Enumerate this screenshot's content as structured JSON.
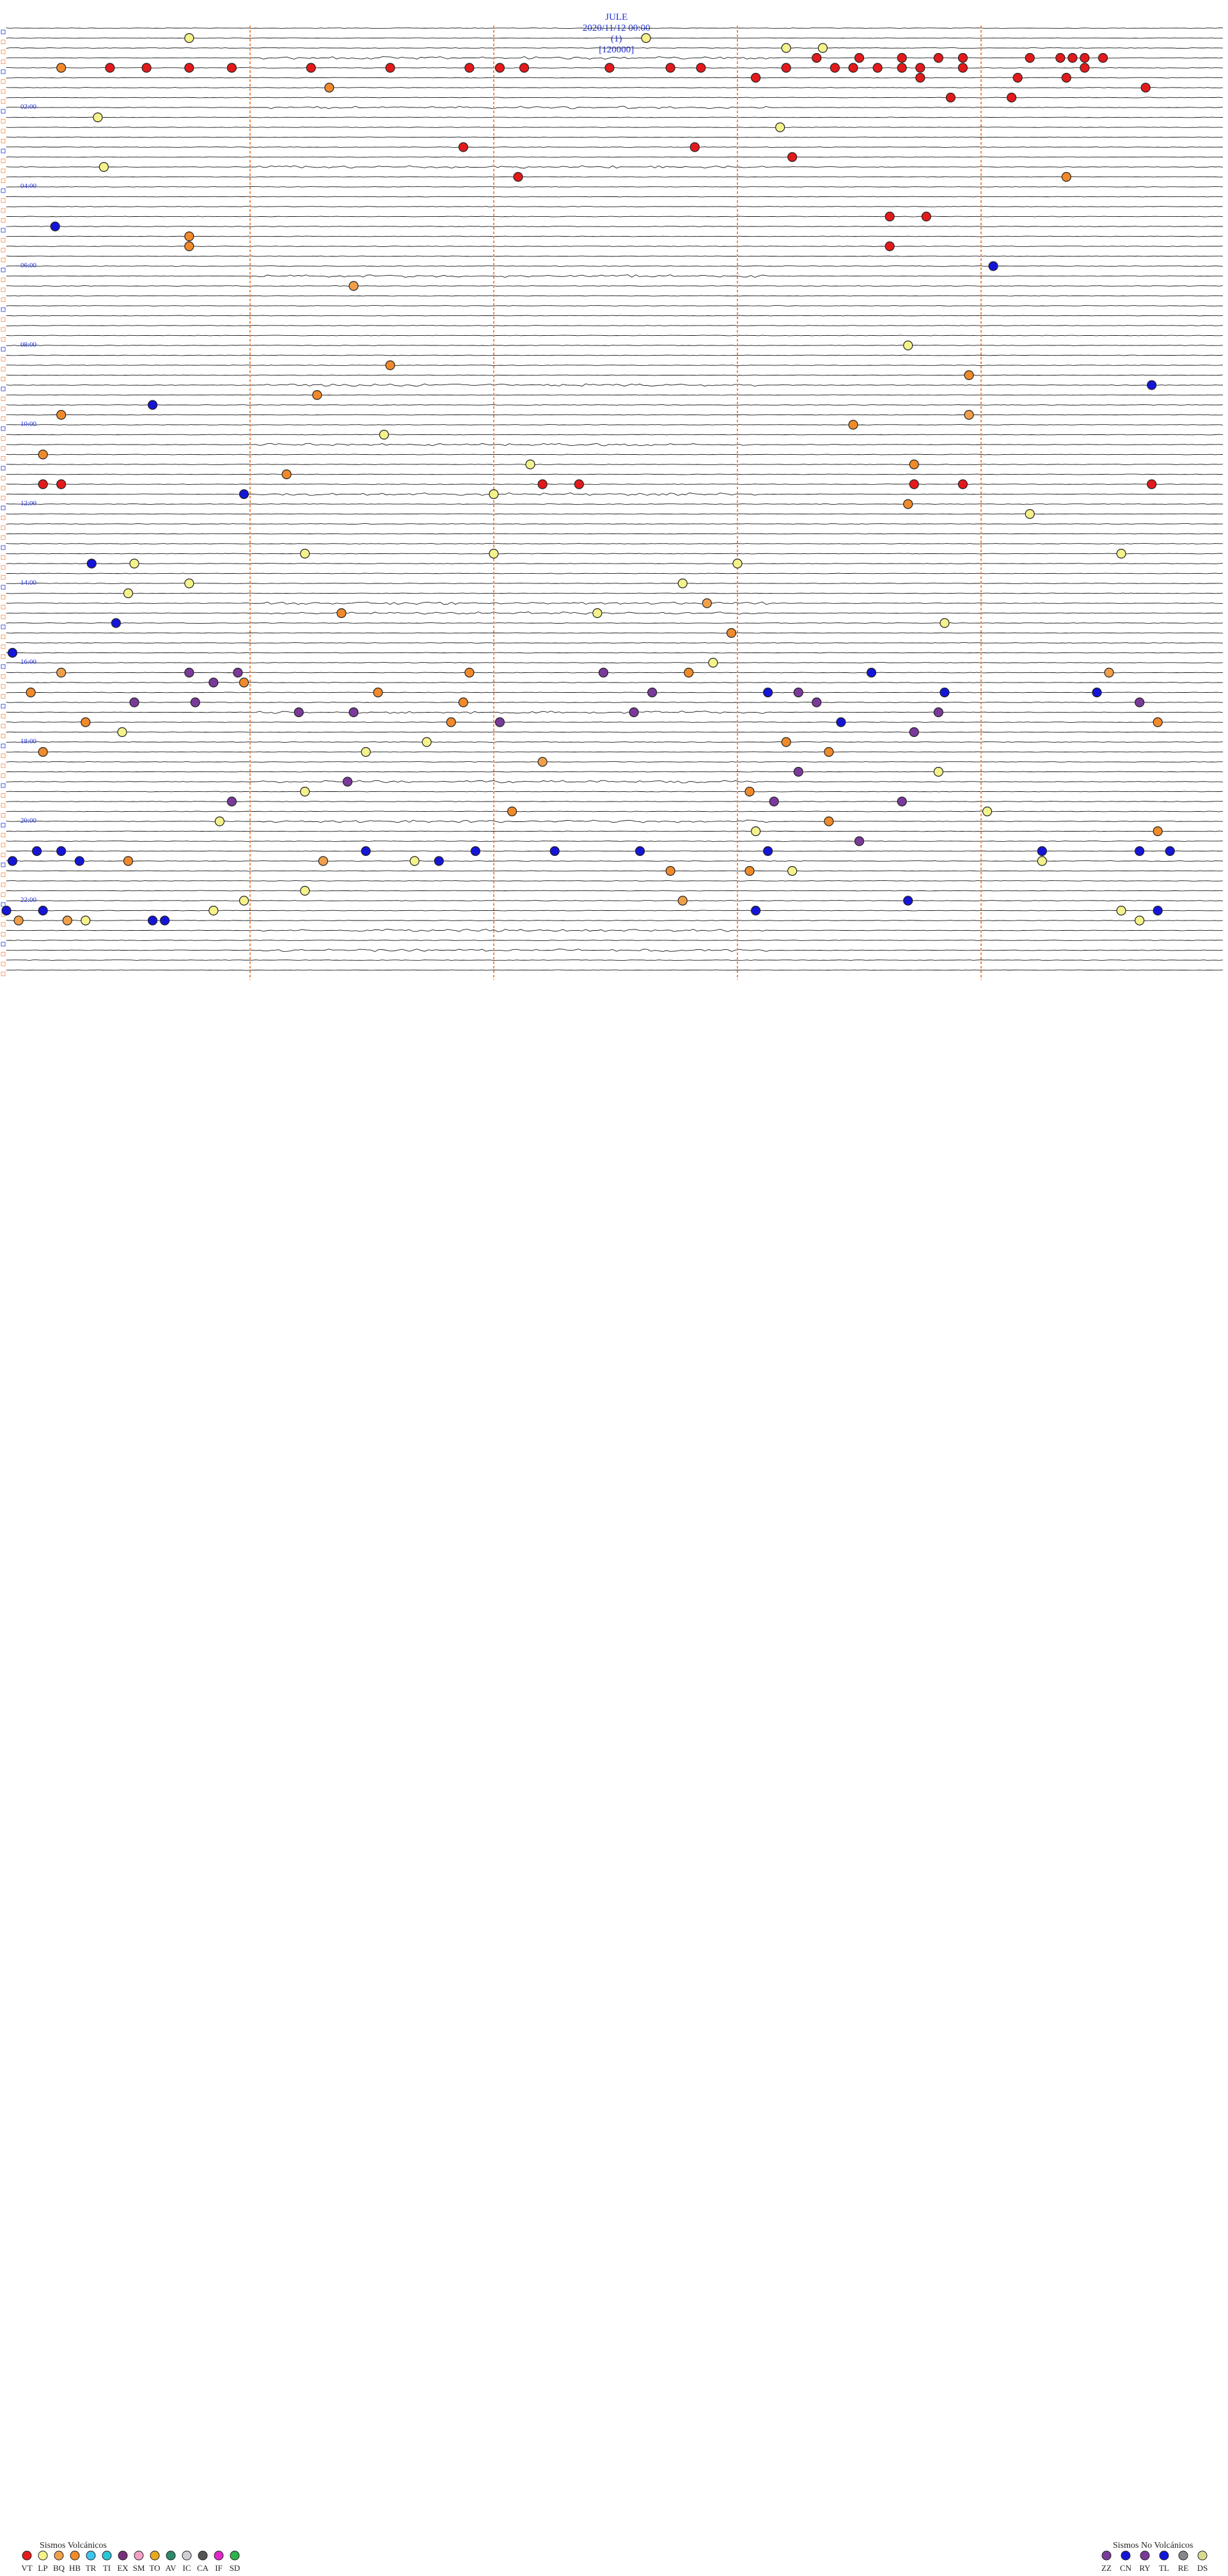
{
  "header": {
    "station": "JULE",
    "datetime": "2020/11/12 00:00",
    "component": "(1)",
    "code": "[120000]"
  },
  "chart_data": {
    "type": "scatter",
    "description": "Helicorder seismogram, 24 hours, one trace per 15 minutes, event markers colored by class",
    "rows_per_hour": 4,
    "hour_labels": [
      "02:00",
      "04:00",
      "06:00",
      "08:00",
      "10:00",
      "12:00",
      "14:00",
      "16:00",
      "18:00",
      "20:00",
      "22:00"
    ],
    "minute_markers": [
      10,
      20,
      30,
      40
    ],
    "events": [
      {
        "class": "LP",
        "hour": 0.25,
        "minute": 3.0
      },
      {
        "class": "LP",
        "hour": 0.25,
        "minute": 10.5
      },
      {
        "class": "LP",
        "hour": 0.5,
        "minute": 12.8
      },
      {
        "class": "LP",
        "hour": 0.5,
        "minute": 13.4
      },
      {
        "class": "VT",
        "hour": 0.75,
        "minute": 13.3
      },
      {
        "class": "VT",
        "hour": 0.75,
        "minute": 14.0
      },
      {
        "class": "VT",
        "hour": 0.75,
        "minute": 14.7
      },
      {
        "class": "VT",
        "hour": 0.75,
        "minute": 15.3
      },
      {
        "class": "VT",
        "hour": 0.75,
        "minute": 15.7
      },
      {
        "class": "VT",
        "hour": 0.75,
        "minute": 16.8
      },
      {
        "class": "VT",
        "hour": 0.75,
        "minute": 17.3
      },
      {
        "class": "VT",
        "hour": 0.75,
        "minute": 17.5
      },
      {
        "class": "VT",
        "hour": 0.75,
        "minute": 17.7
      },
      {
        "class": "VT",
        "hour": 0.75,
        "minute": 18.0
      },
      {
        "class": "HB",
        "hour": 1.0,
        "minute": 0.9
      },
      {
        "class": "VT",
        "hour": 1.0,
        "minute": 1.7
      },
      {
        "class": "VT",
        "hour": 1.0,
        "minute": 2.3
      },
      {
        "class": "VT",
        "hour": 1.0,
        "minute": 3.0
      },
      {
        "class": "VT",
        "hour": 1.0,
        "minute": 3.7
      },
      {
        "class": "VT",
        "hour": 1.0,
        "minute": 5.0
      },
      {
        "class": "VT",
        "hour": 1.0,
        "minute": 6.3
      },
      {
        "class": "VT",
        "hour": 1.0,
        "minute": 7.6
      },
      {
        "class": "VT",
        "hour": 1.0,
        "minute": 8.1
      },
      {
        "class": "VT",
        "hour": 1.0,
        "minute": 8.5
      },
      {
        "class": "VT",
        "hour": 1.0,
        "minute": 9.9
      },
      {
        "class": "VT",
        "hour": 1.0,
        "minute": 10.9
      },
      {
        "class": "VT",
        "hour": 1.0,
        "minute": 11.4
      },
      {
        "class": "VT",
        "hour": 1.0,
        "minute": 12.8
      },
      {
        "class": "VT",
        "hour": 1.0,
        "minute": 13.6
      },
      {
        "class": "VT",
        "hour": 1.0,
        "minute": 13.9
      },
      {
        "class": "VT",
        "hour": 1.0,
        "minute": 14.3
      },
      {
        "class": "VT",
        "hour": 1.0,
        "minute": 14.7
      },
      {
        "class": "VT",
        "hour": 1.0,
        "minute": 15.0
      },
      {
        "class": "VT",
        "hour": 1.0,
        "minute": 15.7
      },
      {
        "class": "VT",
        "hour": 1.0,
        "minute": 17.7
      },
      {
        "class": "VT",
        "hour": 1.25,
        "minute": 12.3
      },
      {
        "class": "VT",
        "hour": 1.25,
        "minute": 15.0
      },
      {
        "class": "VT",
        "hour": 1.25,
        "minute": 16.6
      },
      {
        "class": "VT",
        "hour": 1.25,
        "minute": 17.4
      },
      {
        "class": "HB",
        "hour": 1.5,
        "minute": 5.3
      },
      {
        "class": "VT",
        "hour": 1.5,
        "minute": 18.7
      },
      {
        "class": "VT",
        "hour": 1.75,
        "minute": 15.5
      },
      {
        "class": "VT",
        "hour": 1.75,
        "minute": 16.5
      },
      {
        "class": "LP",
        "hour": 2.25,
        "minute": 1.5
      },
      {
        "class": "LP",
        "hour": 2.5,
        "minute": 12.7
      },
      {
        "class": "VT",
        "hour": 3.0,
        "minute": 7.5
      },
      {
        "class": "VT",
        "hour": 3.0,
        "minute": 11.3
      },
      {
        "class": "VT",
        "hour": 3.25,
        "minute": 12.9
      },
      {
        "class": "LP",
        "hour": 3.5,
        "minute": 1.6
      },
      {
        "class": "HB",
        "hour": 3.75,
        "minute": 17.4
      },
      {
        "class": "VT",
        "hour": 3.75,
        "minute": 8.4
      },
      {
        "class": "VT",
        "hour": 4.75,
        "minute": 14.5
      },
      {
        "class": "VT",
        "hour": 4.75,
        "minute": 15.1
      },
      {
        "class": "CN",
        "hour": 5.0,
        "minute": 0.8
      },
      {
        "class": "HB",
        "hour": 5.25,
        "minute": 3.0
      },
      {
        "class": "HB",
        "hour": 5.5,
        "minute": 3.0
      },
      {
        "class": "VT",
        "hour": 5.5,
        "minute": 14.5
      },
      {
        "class": "CN",
        "hour": 6.0,
        "minute": 16.2
      },
      {
        "class": "BQ",
        "hour": 6.5,
        "minute": 5.7
      },
      {
        "class": "LP",
        "hour": 8.0,
        "minute": 14.8
      },
      {
        "class": "HB",
        "hour": 8.5,
        "minute": 6.3
      },
      {
        "class": "HB",
        "hour": 8.75,
        "minute": 15.8
      },
      {
        "class": "CN",
        "hour": 9.0,
        "minute": 18.8
      },
      {
        "class": "HB",
        "hour": 9.25,
        "minute": 5.1
      },
      {
        "class": "CN",
        "hour": 9.5,
        "minute": 2.4
      },
      {
        "class": "HB",
        "hour": 9.75,
        "minute": 0.9
      },
      {
        "class": "BQ",
        "hour": 9.75,
        "minute": 15.8
      },
      {
        "class": "HB",
        "hour": 10.0,
        "minute": 13.9
      },
      {
        "class": "LP",
        "hour": 10.25,
        "minute": 6.2
      },
      {
        "class": "HB",
        "hour": 10.75,
        "minute": 0.6
      },
      {
        "class": "HB",
        "hour": 11.0,
        "minute": 14.9
      },
      {
        "class": "LP",
        "hour": 11.0,
        "minute": 8.6
      },
      {
        "class": "HB",
        "hour": 11.25,
        "minute": 4.6
      },
      {
        "class": "VT",
        "hour": 11.5,
        "minute": 0.6
      },
      {
        "class": "VT",
        "hour": 11.5,
        "minute": 0.9
      },
      {
        "class": "VT",
        "hour": 11.5,
        "minute": 8.8
      },
      {
        "class": "VT",
        "hour": 11.5,
        "minute": 9.4
      },
      {
        "class": "VT",
        "hour": 11.5,
        "minute": 14.9
      },
      {
        "class": "VT",
        "hour": 11.5,
        "minute": 15.7
      },
      {
        "class": "VT",
        "hour": 11.5,
        "minute": 18.8
      },
      {
        "class": "CN",
        "hour": 11.75,
        "minute": 3.9
      },
      {
        "class": "LP",
        "hour": 11.75,
        "minute": 8.0
      },
      {
        "class": "HB",
        "hour": 12.0,
        "minute": 14.8
      },
      {
        "class": "LP",
        "hour": 12.25,
        "minute": 16.8
      },
      {
        "class": "LP",
        "hour": 13.25,
        "minute": 4.9
      },
      {
        "class": "LP",
        "hour": 13.25,
        "minute": 8.0
      },
      {
        "class": "LP",
        "hour": 13.25,
        "minute": 18.3
      },
      {
        "class": "CN",
        "hour": 13.5,
        "minute": 1.4
      },
      {
        "class": "LP",
        "hour": 13.5,
        "minute": 2.1
      },
      {
        "class": "LP",
        "hour": 13.5,
        "minute": 12.0
      },
      {
        "class": "LP",
        "hour": 14.0,
        "minute": 3.0
      },
      {
        "class": "LP",
        "hour": 14.0,
        "minute": 11.1
      },
      {
        "class": "LP",
        "hour": 14.25,
        "minute": 2.0
      },
      {
        "class": "BQ",
        "hour": 14.5,
        "minute": 11.5
      },
      {
        "class": "LP",
        "hour": 14.75,
        "minute": 9.7
      },
      {
        "class": "HB",
        "hour": 14.75,
        "minute": 5.5
      },
      {
        "class": "CN",
        "hour": 15.0,
        "minute": 1.8
      },
      {
        "class": "LP",
        "hour": 15.0,
        "minute": 15.4
      },
      {
        "class": "HB",
        "hour": 15.25,
        "minute": 11.9
      },
      {
        "class": "CN",
        "hour": 15.75,
        "minute": 0.1
      },
      {
        "class": "LP",
        "hour": 16.0,
        "minute": 11.6
      },
      {
        "class": "BQ",
        "hour": 16.25,
        "minute": 0.9
      },
      {
        "class": "HB",
        "hour": 16.25,
        "minute": 7.6
      },
      {
        "class": "RY",
        "hour": 16.25,
        "minute": 9.8
      },
      {
        "class": "HB",
        "hour": 16.25,
        "minute": 11.2
      },
      {
        "class": "CN",
        "hour": 16.25,
        "minute": 14.2
      },
      {
        "class": "BQ",
        "hour": 16.25,
        "minute": 18.1
      },
      {
        "class": "RY",
        "hour": 16.25,
        "minute": 3.0
      },
      {
        "class": "RY",
        "hour": 16.25,
        "minute": 3.8
      },
      {
        "class": "HB",
        "hour": 16.5,
        "minute": 3.9
      },
      {
        "class": "RY",
        "hour": 16.5,
        "minute": 3.4
      },
      {
        "class": "CN",
        "hour": 16.75,
        "minute": 12.5
      },
      {
        "class": "RY",
        "hour": 16.75,
        "minute": 13.0
      },
      {
        "class": "HB",
        "hour": 16.75,
        "minute": 6.1
      },
      {
        "class": "HB",
        "hour": 16.75,
        "minute": 0.4
      },
      {
        "class": "RY",
        "hour": 16.75,
        "minute": 10.6
      },
      {
        "class": "CN",
        "hour": 16.75,
        "minute": 15.4
      },
      {
        "class": "CN",
        "hour": 16.75,
        "minute": 17.9
      },
      {
        "class": "RY",
        "hour": 17.0,
        "minute": 2.1
      },
      {
        "class": "RY",
        "hour": 17.0,
        "minute": 3.1
      },
      {
        "class": "HB",
        "hour": 17.0,
        "minute": 7.5
      },
      {
        "class": "RY",
        "hour": 17.0,
        "minute": 13.3
      },
      {
        "class": "RY",
        "hour": 17.0,
        "minute": 18.6
      },
      {
        "class": "RY",
        "hour": 17.25,
        "minute": 4.8
      },
      {
        "class": "RY",
        "hour": 17.25,
        "minute": 5.7
      },
      {
        "class": "RY",
        "hour": 17.25,
        "minute": 10.3
      },
      {
        "class": "RY",
        "hour": 17.25,
        "minute": 15.3
      },
      {
        "class": "HB",
        "hour": 17.5,
        "minute": 1.3
      },
      {
        "class": "HB",
        "hour": 17.5,
        "minute": 7.3
      },
      {
        "class": "RY",
        "hour": 17.5,
        "minute": 8.1
      },
      {
        "class": "CN",
        "hour": 17.5,
        "minute": 13.7
      },
      {
        "class": "HB",
        "hour": 17.5,
        "minute": 18.9
      },
      {
        "class": "LP",
        "hour": 17.75,
        "minute": 1.9
      },
      {
        "class": "RY",
        "hour": 17.75,
        "minute": 14.9
      },
      {
        "class": "HB",
        "hour": 18.0,
        "minute": 12.8
      },
      {
        "class": "LP",
        "hour": 18.0,
        "minute": 6.9
      },
      {
        "class": "HB",
        "hour": 18.25,
        "minute": 0.6
      },
      {
        "class": "LP",
        "hour": 18.25,
        "minute": 5.9
      },
      {
        "class": "HB",
        "hour": 18.25,
        "minute": 13.5
      },
      {
        "class": "BQ",
        "hour": 18.5,
        "minute": 8.8
      },
      {
        "class": "LP",
        "hour": 18.75,
        "minute": 15.3
      },
      {
        "class": "RY",
        "hour": 18.75,
        "minute": 13.0
      },
      {
        "class": "RY",
        "hour": 19.0,
        "minute": 5.6
      },
      {
        "class": "LP",
        "hour": 19.25,
        "minute": 4.9
      },
      {
        "class": "HB",
        "hour": 19.25,
        "minute": 12.2
      },
      {
        "class": "RY",
        "hour": 19.5,
        "minute": 3.7
      },
      {
        "class": "RY",
        "hour": 19.5,
        "minute": 12.6
      },
      {
        "class": "RY",
        "hour": 19.5,
        "minute": 14.7
      },
      {
        "class": "LP",
        "hour": 19.75,
        "minute": 16.1
      },
      {
        "class": "HB",
        "hour": 19.75,
        "minute": 8.3
      },
      {
        "class": "HB",
        "hour": 20.0,
        "minute": 13.5
      },
      {
        "class": "LP",
        "hour": 20.0,
        "minute": 3.5
      },
      {
        "class": "LP",
        "hour": 20.25,
        "minute": 12.3
      },
      {
        "class": "HB",
        "hour": 20.25,
        "minute": 18.9
      },
      {
        "class": "RY",
        "hour": 20.5,
        "minute": 14.0
      },
      {
        "class": "CN",
        "hour": 20.75,
        "minute": 0.5
      },
      {
        "class": "CN",
        "hour": 20.75,
        "minute": 0.9
      },
      {
        "class": "CN",
        "hour": 20.75,
        "minute": 5.9
      },
      {
        "class": "CN",
        "hour": 20.75,
        "minute": 7.7
      },
      {
        "class": "CN",
        "hour": 20.75,
        "minute": 9.0
      },
      {
        "class": "CN",
        "hour": 20.75,
        "minute": 10.4
      },
      {
        "class": "CN",
        "hour": 20.75,
        "minute": 12.5
      },
      {
        "class": "CN",
        "hour": 20.75,
        "minute": 17.0
      },
      {
        "class": "CN",
        "hour": 20.75,
        "minute": 18.6
      },
      {
        "class": "CN",
        "hour": 20.75,
        "minute": 19.1
      },
      {
        "class": "LP",
        "hour": 21.0,
        "minute": 6.7
      },
      {
        "class": "CN",
        "hour": 21.0,
        "minute": 0.1
      },
      {
        "class": "CN",
        "hour": 21.0,
        "minute": 1.2
      },
      {
        "class": "BQ",
        "hour": 21.0,
        "minute": 5.2
      },
      {
        "class": "CN",
        "hour": 21.0,
        "minute": 7.1
      },
      {
        "class": "HB",
        "hour": 21.0,
        "minute": 2.0
      },
      {
        "class": "LP",
        "hour": 21.0,
        "minute": 17.0
      },
      {
        "class": "HB",
        "hour": 21.25,
        "minute": 10.9
      },
      {
        "class": "HB",
        "hour": 21.25,
        "minute": 12.2
      },
      {
        "class": "LP",
        "hour": 21.25,
        "minute": 12.9
      },
      {
        "class": "LP",
        "hour": 21.75,
        "minute": 4.9
      },
      {
        "class": "LP",
        "hour": 22.0,
        "minute": 3.9
      },
      {
        "class": "BQ",
        "hour": 22.0,
        "minute": 11.1
      },
      {
        "class": "CN",
        "hour": 22.0,
        "minute": 14.8
      },
      {
        "class": "CN",
        "hour": 22.25,
        "minute": 0.0
      },
      {
        "class": "CN",
        "hour": 22.25,
        "minute": 0.6
      },
      {
        "class": "CN",
        "hour": 22.25,
        "minute": 12.3
      },
      {
        "class": "LP",
        "hour": 22.25,
        "minute": 3.4
      },
      {
        "class": "LP",
        "hour": 22.25,
        "minute": 18.3
      },
      {
        "class": "CN",
        "hour": 22.25,
        "minute": 18.9
      },
      {
        "class": "BQ",
        "hour": 22.5,
        "minute": 0.2
      },
      {
        "class": "LP",
        "hour": 22.5,
        "minute": 1.3
      },
      {
        "class": "CN",
        "hour": 22.5,
        "minute": 2.4
      },
      {
        "class": "CN",
        "hour": 22.5,
        "minute": 2.6
      },
      {
        "class": "BQ",
        "hour": 22.5,
        "minute": 1.0
      },
      {
        "class": "LP",
        "hour": 22.5,
        "minute": 18.6
      }
    ]
  },
  "legend": {
    "volcanic": {
      "title": "Sismos Volcánicos",
      "items": [
        {
          "code": "VT",
          "color": "#e31a1c"
        },
        {
          "code": "LP",
          "color": "#f4f28a"
        },
        {
          "code": "BQ",
          "color": "#f0a04b"
        },
        {
          "code": "HB",
          "color": "#f08a2a"
        },
        {
          "code": "TR",
          "color": "#3ec4ef"
        },
        {
          "code": "TI",
          "color": "#29c7d8"
        },
        {
          "code": "EX",
          "color": "#7a2f7a"
        },
        {
          "code": "SM",
          "color": "#f2a0c8"
        },
        {
          "code": "TO",
          "color": "#e8a81e"
        },
        {
          "code": "AV",
          "color": "#2c8a6a"
        },
        {
          "code": "IC",
          "color": "#cfd0d4"
        },
        {
          "code": "CA",
          "color": "#555555"
        },
        {
          "code": "IF",
          "color": "#e028c8"
        },
        {
          "code": "SD",
          "color": "#2fb24a"
        }
      ]
    },
    "non_volcanic": {
      "title": "Sismos No Volcánicos",
      "items": [
        {
          "code": "ZZ",
          "color": "#7a3a9a"
        },
        {
          "code": "CN",
          "color": "#1515d8"
        },
        {
          "code": "RY",
          "color": "#7a3a9a"
        },
        {
          "code": "TL",
          "color": "#1515d8"
        },
        {
          "code": "RE",
          "color": "#888888"
        },
        {
          "code": "DS",
          "color": "#d8d890"
        }
      ]
    }
  },
  "colors": {
    "trace": "#1a1a1a",
    "minute_marker": "#f08a4a",
    "hour_label": "#1f2fd8",
    "header": "#1f2fd8"
  }
}
